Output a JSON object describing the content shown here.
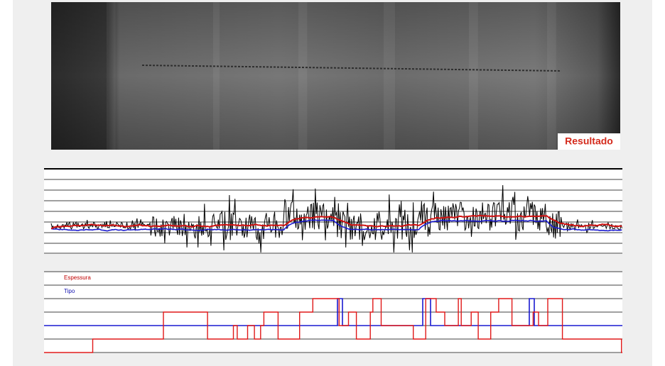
{
  "image": {
    "label": "Resultado"
  },
  "legend": {
    "items": [
      {
        "label": "Espessura"
      },
      {
        "label": "Tipo"
      }
    ]
  }
}
